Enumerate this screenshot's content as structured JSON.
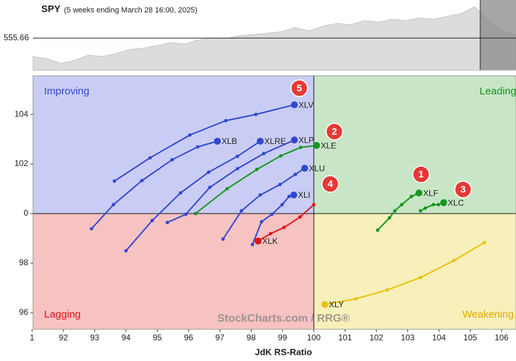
{
  "chart_data": {
    "type": "rrg",
    "x_label": "JdK RS-Ratio",
    "quadrants": [
      "Improving",
      "Leading",
      "Lagging",
      "Weakening"
    ],
    "watermark": "StockCharts.com / RRG®",
    "annotations": [
      "1",
      "2",
      "3",
      "4",
      "5"
    ],
    "xlim": [
      91.03,
      106.46
    ],
    "ylim": [
      95.33,
      105.56
    ],
    "xticks": [
      {
        "value": 91,
        "label": "1"
      },
      92,
      93,
      94,
      95,
      96,
      97,
      98,
      99,
      100,
      101,
      102,
      103,
      104,
      105,
      106
    ],
    "yticks": [
      96,
      98,
      {
        "value": 100,
        "label": "0"
      },
      102,
      104
    ],
    "series": [
      {
        "name": "XLV",
        "color": "#3347d0",
        "x": [
          93.63,
          94.77,
          96.04,
          97.19,
          98.15,
          99.38
        ],
        "values": [
          101.31,
          102.25,
          103.17,
          103.75,
          104.0,
          104.39
        ]
      },
      {
        "name": "XLB",
        "color": "#3347d0",
        "x": [
          92.9,
          93.6,
          94.51,
          95.47,
          96.29,
          96.92
        ],
        "values": [
          99.39,
          100.36,
          101.33,
          102.17,
          102.69,
          102.92
        ]
      },
      {
        "name": "XLRE",
        "color": "#3347d0",
        "x": [
          94.0,
          94.84,
          95.74,
          96.64,
          97.56,
          98.29
        ],
        "values": [
          98.5,
          99.72,
          100.83,
          101.67,
          102.31,
          102.92
        ]
      },
      {
        "name": "XLP",
        "color": "#3347d0",
        "x": [
          95.32,
          95.91,
          96.68,
          97.56,
          98.4,
          99.38
        ],
        "values": [
          99.64,
          99.97,
          101.06,
          101.81,
          102.42,
          102.97
        ]
      },
      {
        "name": "XLE",
        "color": "#14961e",
        "x": [
          96.22,
          97.23,
          98.18,
          98.95,
          99.58,
          100.09
        ],
        "values": [
          100.0,
          101.0,
          101.78,
          102.33,
          102.67,
          102.75
        ]
      },
      {
        "name": "XLU",
        "color": "#3347d0",
        "x": [
          97.1,
          97.69,
          98.29,
          98.92,
          99.41,
          99.71
        ],
        "values": [
          98.97,
          100.11,
          100.75,
          101.17,
          101.58,
          101.83
        ]
      },
      {
        "name": "XLI",
        "color": "#3347d0",
        "x": [
          98.04,
          98.33,
          98.66,
          98.99,
          99.21,
          99.36
        ],
        "values": [
          98.75,
          99.67,
          99.97,
          100.36,
          100.69,
          100.75
        ]
      },
      {
        "name": "XLK",
        "color": "#e01414",
        "x": [
          100.0,
          99.56,
          99.05,
          98.62,
          98.22
        ],
        "values": [
          100.36,
          99.86,
          99.44,
          99.19,
          98.89
        ]
      },
      {
        "name": "XLF",
        "color": "#14961e",
        "x": [
          102.04,
          102.42,
          102.59,
          102.81,
          103.12,
          103.36
        ],
        "values": [
          99.33,
          99.83,
          100.11,
          100.36,
          100.69,
          100.83
        ]
      },
      {
        "name": "XLC",
        "color": "#14961e",
        "x": [
          103.41,
          103.56,
          103.82,
          103.98,
          104.15
        ],
        "values": [
          100.11,
          100.22,
          100.36,
          100.36,
          100.44
        ]
      },
      {
        "name": "XLY",
        "color": "#e8c20a",
        "x": [
          105.45,
          104.48,
          103.41,
          102.35,
          101.34,
          100.35
        ],
        "values": [
          98.83,
          98.11,
          97.42,
          96.92,
          96.56,
          96.33
        ]
      }
    ],
    "benchmark": {
      "name": "SPY",
      "subtitle": "(5 weeks ending March 28 16:00, 2025)",
      "reference": 555.66,
      "ylim": [
        530,
        586
      ],
      "values": [
        541.0,
        539.3,
        535.5,
        537.7,
        542.1,
        541.0,
        543.2,
        546.5,
        547.6,
        549.8,
        552.0,
        550.9,
        554.2,
        555.8,
        555.3,
        557.5,
        558.5,
        559.6,
        560.7,
        564.0,
        561.3,
        565.1,
        567.3,
        566.2,
        569.5,
        568.4,
        570.6,
        569.5,
        571.7,
        570.6,
        573.0,
        575.0,
        580.5,
        569.5,
        561.3,
        558.5
      ]
    }
  }
}
